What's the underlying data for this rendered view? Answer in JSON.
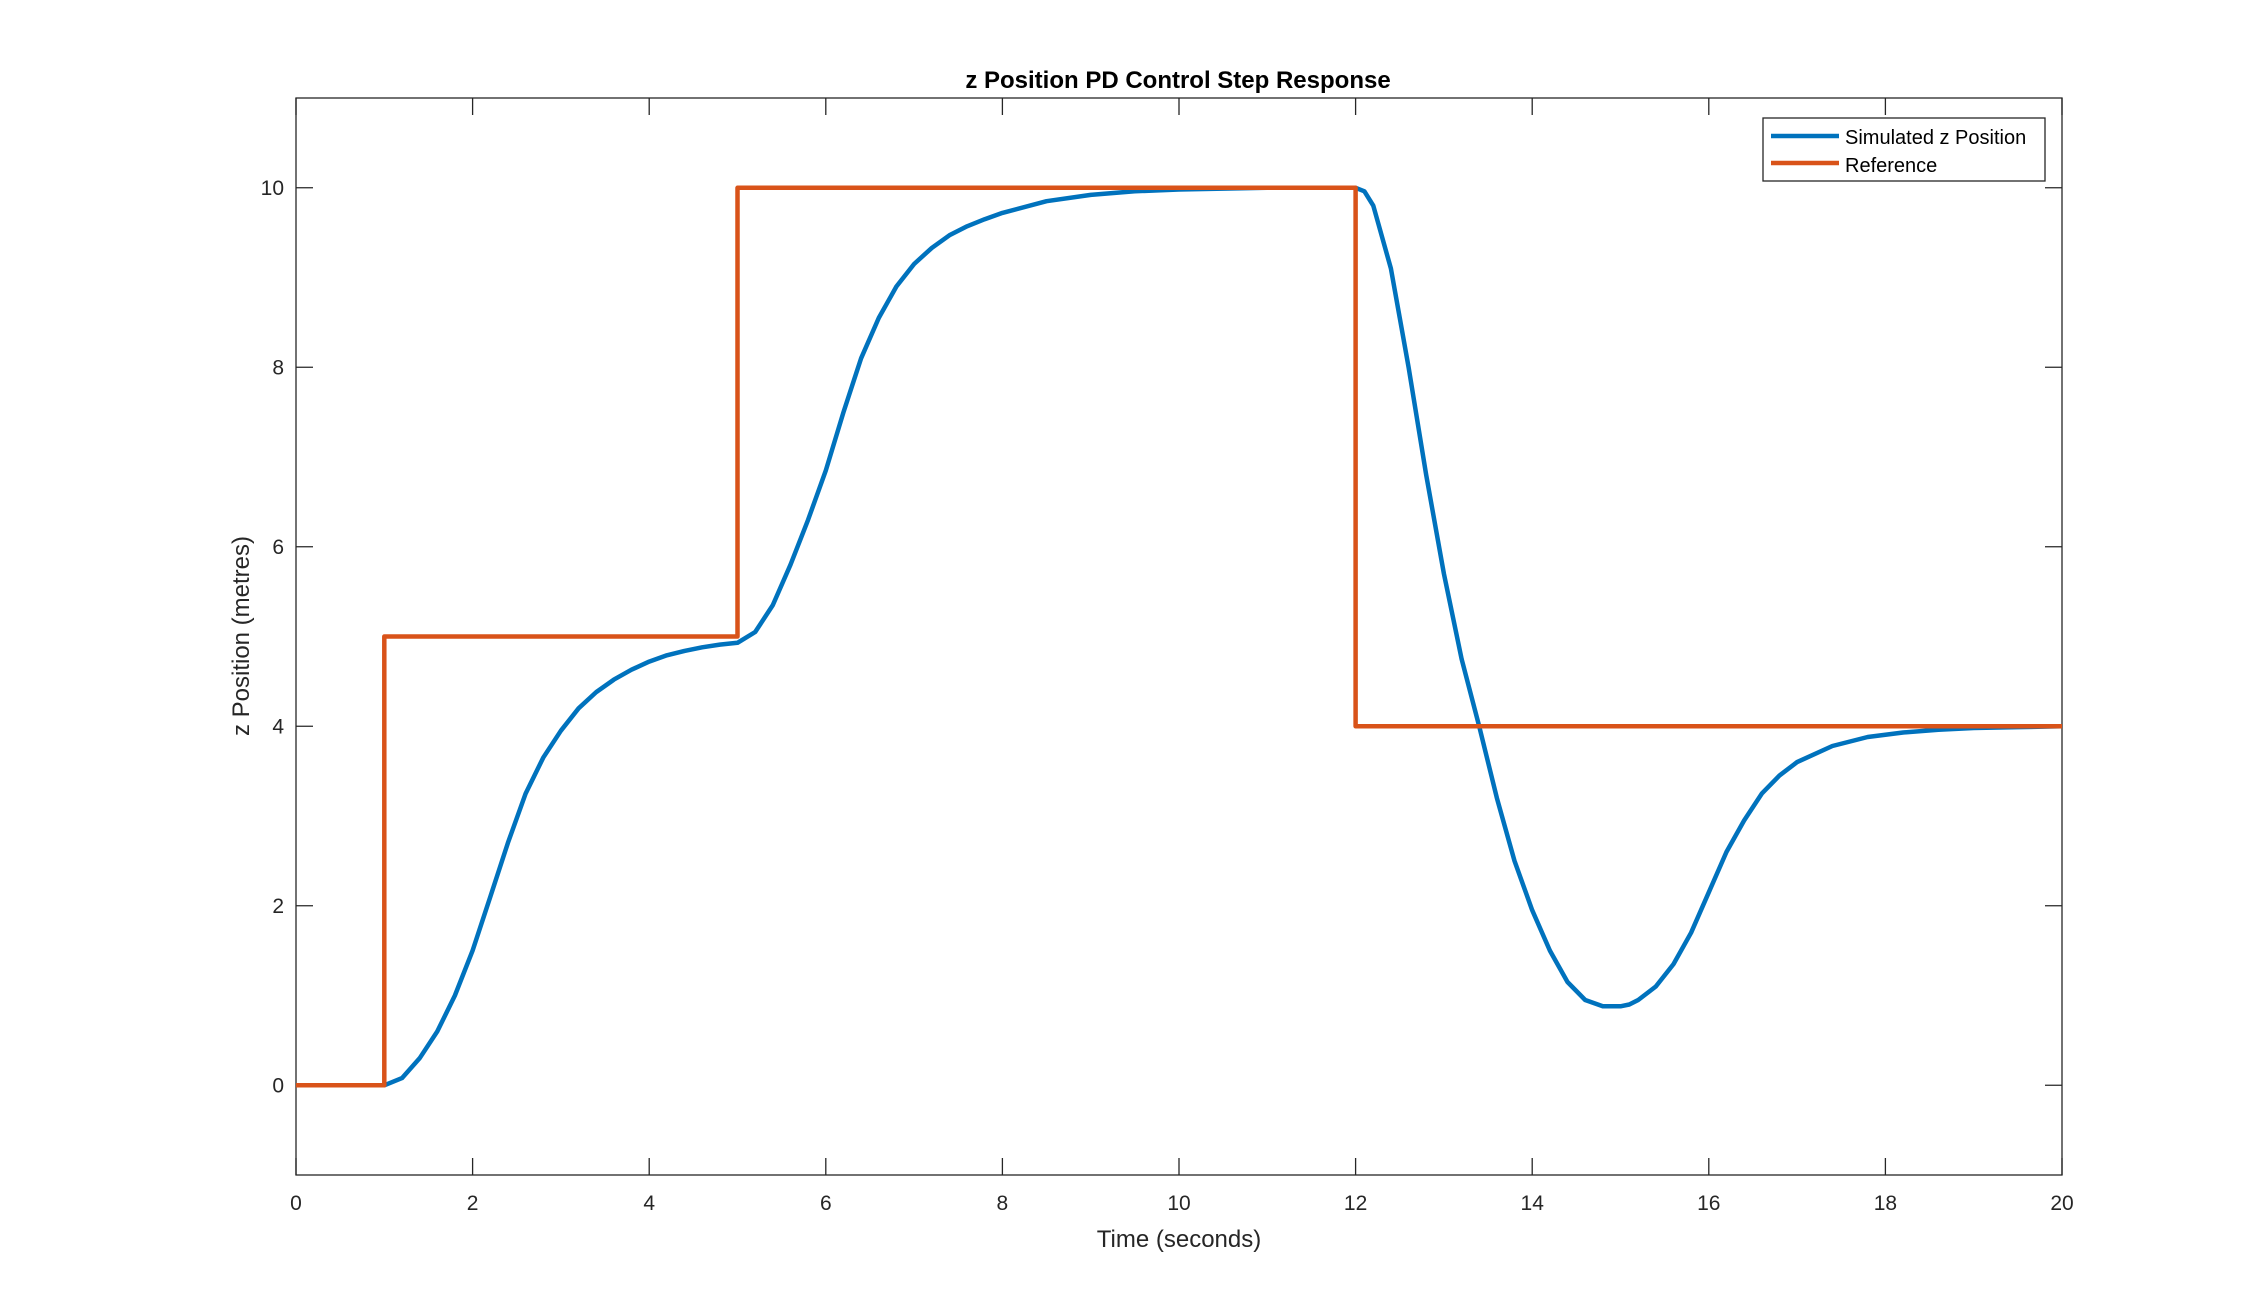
{
  "chart_data": {
    "type": "line",
    "title": "z Position PD Control Step Response",
    "xlabel": "Time (seconds)",
    "ylabel": "z Position (metres)",
    "xlim": [
      0,
      20
    ],
    "ylim": [
      -1,
      11
    ],
    "xticks": [
      0,
      2,
      4,
      6,
      8,
      10,
      12,
      14,
      16,
      18,
      20
    ],
    "yticks": [
      0,
      2,
      4,
      6,
      8,
      10
    ],
    "grid": false,
    "legend_position": "top-right",
    "series": [
      {
        "name": "Simulated z Position",
        "color": "#0072BD",
        "x": [
          0,
          1.0,
          1.2,
          1.4,
          1.6,
          1.8,
          2.0,
          2.2,
          2.4,
          2.6,
          2.8,
          3.0,
          3.2,
          3.4,
          3.6,
          3.8,
          4.0,
          4.2,
          4.4,
          4.6,
          4.8,
          5.0,
          5.2,
          5.4,
          5.6,
          5.8,
          6.0,
          6.2,
          6.4,
          6.6,
          6.8,
          7.0,
          7.2,
          7.4,
          7.6,
          7.8,
          8.0,
          8.5,
          9.0,
          9.5,
          10.0,
          11.0,
          12.0,
          12.1,
          12.2,
          12.4,
          12.6,
          12.8,
          13.0,
          13.2,
          13.4,
          13.6,
          13.8,
          14.0,
          14.2,
          14.4,
          14.6,
          14.8,
          15.0,
          15.1,
          15.2,
          15.4,
          15.6,
          15.8,
          16.0,
          16.2,
          16.4,
          16.6,
          16.8,
          17.0,
          17.4,
          17.8,
          18.2,
          18.6,
          19.0,
          19.5,
          20.0
        ],
        "y": [
          0,
          0,
          0.08,
          0.3,
          0.6,
          1.0,
          1.5,
          2.1,
          2.7,
          3.25,
          3.65,
          3.95,
          4.2,
          4.38,
          4.52,
          4.63,
          4.72,
          4.79,
          4.84,
          4.88,
          4.91,
          4.93,
          5.05,
          5.35,
          5.8,
          6.3,
          6.85,
          7.5,
          8.1,
          8.55,
          8.9,
          9.15,
          9.33,
          9.47,
          9.57,
          9.65,
          9.72,
          9.85,
          9.92,
          9.96,
          9.98,
          10.0,
          10.0,
          9.96,
          9.8,
          9.1,
          8.0,
          6.8,
          5.7,
          4.75,
          4.0,
          3.2,
          2.5,
          1.95,
          1.5,
          1.15,
          0.95,
          0.88,
          0.88,
          0.9,
          0.95,
          1.1,
          1.35,
          1.7,
          2.15,
          2.6,
          2.95,
          3.25,
          3.45,
          3.6,
          3.78,
          3.88,
          3.93,
          3.96,
          3.98,
          3.99,
          4.0
        ]
      },
      {
        "name": "Reference",
        "color": "#D95319",
        "x": [
          0,
          1,
          1,
          5,
          5,
          12,
          12,
          20
        ],
        "y": [
          0,
          0,
          5,
          5,
          10,
          10,
          4,
          4
        ]
      }
    ]
  }
}
